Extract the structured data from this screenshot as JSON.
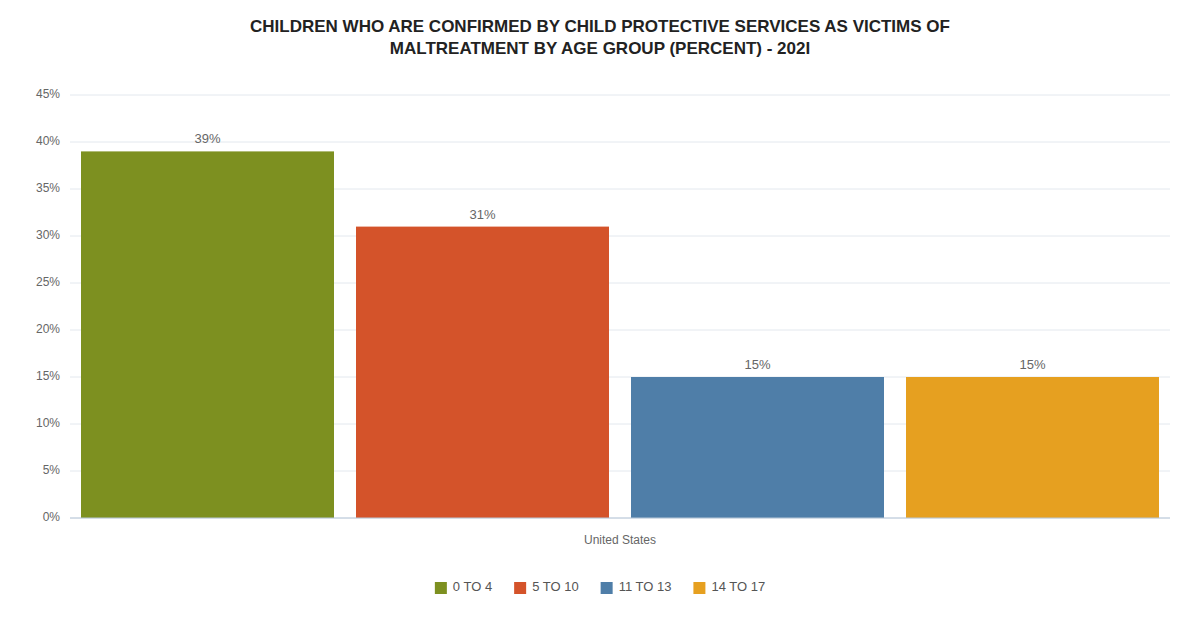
{
  "chart_data": {
    "type": "bar",
    "title": "CHILDREN WHO ARE CONFIRMED BY CHILD PROTECTIVE SERVICES AS VICTIMS OF\nMALTREATMENT BY AGE GROUP (PERCENT) - 202I",
    "xlabel": "United States",
    "categories": [
      "0 TO 4",
      "5 TO 10",
      "11 TO 13",
      "14 TO 17"
    ],
    "values": [
      39,
      31,
      15,
      15
    ],
    "value_labels": [
      "39%",
      "31%",
      "15%",
      "15%"
    ],
    "colors": [
      "#7d9020",
      "#d4532a",
      "#4f7ea8",
      "#e6a020"
    ],
    "ylim": [
      0,
      45
    ],
    "yticks": [
      {
        "value": 0,
        "label": "0%"
      },
      {
        "value": 5,
        "label": "5%"
      },
      {
        "value": 10,
        "label": "10%"
      },
      {
        "value": 15,
        "label": "15%"
      },
      {
        "value": 20,
        "label": "20%"
      },
      {
        "value": 25,
        "label": "25%"
      },
      {
        "value": 30,
        "label": "30%"
      },
      {
        "value": 35,
        "label": "35%"
      },
      {
        "value": 40,
        "label": "40%"
      },
      {
        "value": 45,
        "label": "45%"
      }
    ],
    "grid": true,
    "data_labels": true,
    "tick_labels": "y",
    "legend": "bottom"
  }
}
